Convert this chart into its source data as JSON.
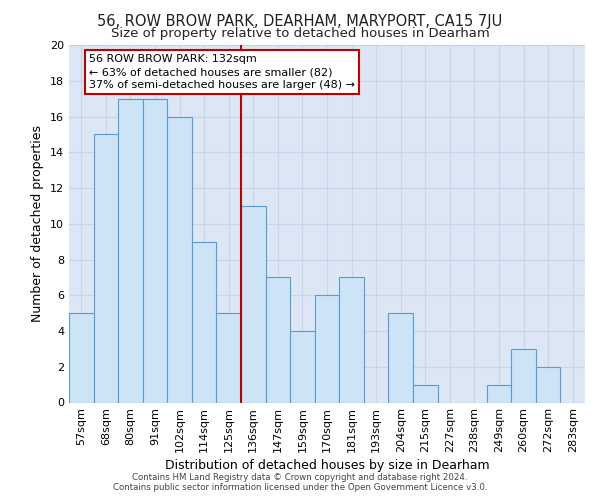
{
  "title1": "56, ROW BROW PARK, DEARHAM, MARYPORT, CA15 7JU",
  "title2": "Size of property relative to detached houses in Dearham",
  "xlabel": "Distribution of detached houses by size in Dearham",
  "ylabel": "Number of detached properties",
  "categories": [
    "57sqm",
    "68sqm",
    "80sqm",
    "91sqm",
    "102sqm",
    "114sqm",
    "125sqm",
    "136sqm",
    "147sqm",
    "159sqm",
    "170sqm",
    "181sqm",
    "193sqm",
    "204sqm",
    "215sqm",
    "227sqm",
    "238sqm",
    "249sqm",
    "260sqm",
    "272sqm",
    "283sqm"
  ],
  "values": [
    5,
    15,
    17,
    17,
    16,
    9,
    5,
    11,
    7,
    4,
    6,
    7,
    0,
    5,
    1,
    0,
    0,
    1,
    3,
    2,
    0
  ],
  "bar_color": "#cce4f5",
  "bar_edge_color": "#5b9bd5",
  "vline_x": 6.5,
  "vline_color": "#c00000",
  "annotation_text": "56 ROW BROW PARK: 132sqm\n← 63% of detached houses are smaller (82)\n37% of semi-detached houses are larger (48) →",
  "annotation_box_color": "#ffffff",
  "annotation_box_edge": "#c00000",
  "ylim": [
    0,
    20
  ],
  "yticks": [
    0,
    2,
    4,
    6,
    8,
    10,
    12,
    14,
    16,
    18,
    20
  ],
  "grid_color": "#c8d4e8",
  "background_color": "#dce6f5",
  "footer1": "Contains HM Land Registry data © Crown copyright and database right 2024.",
  "footer2": "Contains public sector information licensed under the Open Government Licence v3.0.",
  "title1_fontsize": 10.5,
  "title2_fontsize": 9.5,
  "xlabel_fontsize": 9,
  "ylabel_fontsize": 9,
  "tick_fontsize": 8,
  "annot_fontsize": 8
}
